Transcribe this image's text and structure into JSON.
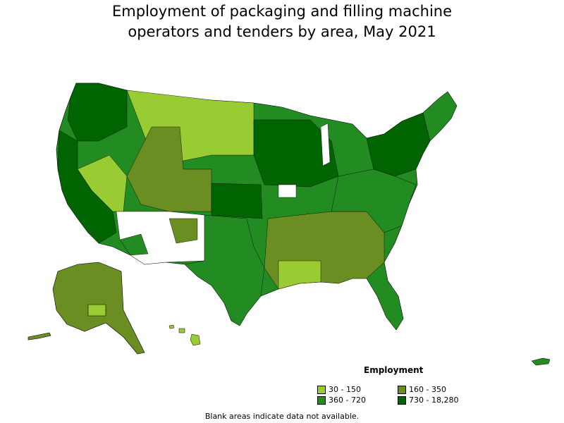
{
  "title": {
    "line1": "Employment of packaging and filling machine",
    "line2": "operators and tenders by area, May 2021"
  },
  "legend": {
    "title": "Employment",
    "items": [
      {
        "label": "30 - 150",
        "color": "#99cc33"
      },
      {
        "label": "160 - 350",
        "color": "#6b8e23"
      },
      {
        "label": "360 - 720",
        "color": "#228b22"
      },
      {
        "label": "730 - 18,280",
        "color": "#006400"
      }
    ]
  },
  "note": "Blank areas indicate data not available.",
  "colors": {
    "no_data": "#ffffff",
    "border": "#000000"
  }
}
